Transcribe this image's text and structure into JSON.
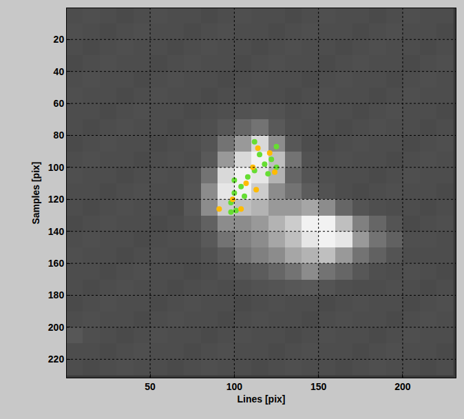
{
  "chart_data": {
    "type": "scatter",
    "x_label": "Lines [pix]",
    "y_label": "Samples [pix]",
    "xlim": [
      0.5,
      231.5
    ],
    "ylim": [
      231.5,
      0.5
    ],
    "xticks": [
      50,
      100,
      150,
      200
    ],
    "yticks": [
      20,
      40,
      60,
      80,
      100,
      120,
      140,
      160,
      180,
      200,
      220
    ],
    "grid": true,
    "marker": "circle",
    "series": [
      {
        "color": "#66dd33",
        "x": [
          112,
          125,
          115,
          122,
          118,
          125,
          120,
          100,
          108,
          104,
          100,
          106,
          98,
          98,
          101,
          112
        ],
        "values": [
          84,
          87,
          92,
          95,
          98,
          100,
          104,
          108,
          106,
          112,
          116,
          118,
          122,
          128,
          127,
          102
        ]
      },
      {
        "color": "#ffbb00",
        "x": [
          114,
          121,
          111,
          107,
          113,
          91,
          104,
          99,
          124
        ],
        "values": [
          88,
          91,
          100,
          110,
          114,
          126,
          126,
          120,
          103
        ]
      }
    ],
    "heatmap": {
      "x": [
        5,
        15,
        25,
        35,
        45,
        55,
        65,
        75,
        85,
        95,
        105,
        115,
        125,
        135,
        145,
        155,
        165,
        175,
        185,
        195,
        205,
        215,
        225
      ],
      "y": [
        5,
        15,
        25,
        35,
        45,
        55,
        65,
        75,
        85,
        95,
        105,
        115,
        125,
        135,
        145,
        155,
        165,
        175,
        185,
        195,
        205,
        215,
        225
      ],
      "zlim": [
        0,
        100
      ],
      "cells": [
        [
          30,
          31,
          30,
          29,
          30,
          31,
          30,
          30,
          29,
          30,
          31,
          30,
          30,
          29,
          30,
          31,
          30,
          30,
          29,
          30,
          31,
          30,
          30
        ],
        [
          31,
          30,
          29,
          30,
          31,
          30,
          30,
          29,
          30,
          31,
          30,
          30,
          29,
          30,
          31,
          30,
          30,
          29,
          30,
          31,
          30,
          30,
          29
        ],
        [
          30,
          29,
          30,
          31,
          30,
          30,
          29,
          30,
          31,
          30,
          30,
          29,
          30,
          31,
          30,
          30,
          29,
          30,
          31,
          30,
          30,
          29,
          30
        ],
        [
          29,
          30,
          31,
          30,
          30,
          29,
          30,
          31,
          30,
          30,
          29,
          30,
          31,
          30,
          30,
          29,
          30,
          31,
          30,
          30,
          29,
          30,
          31
        ],
        [
          30,
          31,
          30,
          30,
          29,
          30,
          31,
          30,
          30,
          29,
          30,
          31,
          30,
          30,
          29,
          30,
          31,
          30,
          30,
          29,
          30,
          31,
          30
        ],
        [
          31,
          30,
          30,
          29,
          30,
          31,
          30,
          30,
          29,
          30,
          31,
          30,
          30,
          29,
          30,
          31,
          30,
          30,
          29,
          30,
          31,
          30,
          30
        ],
        [
          30,
          30,
          29,
          30,
          31,
          30,
          30,
          29,
          30,
          31,
          32,
          33,
          32,
          30,
          31,
          30,
          30,
          29,
          30,
          31,
          30,
          30,
          29
        ],
        [
          30,
          29,
          30,
          31,
          30,
          30,
          29,
          30,
          31,
          34,
          40,
          45,
          35,
          31,
          30,
          30,
          29,
          30,
          31,
          30,
          30,
          29,
          30
        ],
        [
          29,
          30,
          31,
          30,
          30,
          29,
          30,
          31,
          33,
          45,
          60,
          85,
          55,
          34,
          30,
          29,
          30,
          31,
          30,
          30,
          29,
          30,
          31
        ],
        [
          30,
          31,
          30,
          30,
          29,
          30,
          31,
          30,
          35,
          60,
          85,
          95,
          75,
          45,
          32,
          30,
          31,
          30,
          30,
          29,
          30,
          31,
          30
        ],
        [
          31,
          30,
          30,
          29,
          30,
          31,
          30,
          32,
          45,
          85,
          95,
          90,
          70,
          40,
          33,
          31,
          30,
          30,
          29,
          30,
          31,
          30,
          30
        ],
        [
          30,
          30,
          29,
          30,
          31,
          30,
          30,
          33,
          55,
          90,
          95,
          80,
          55,
          45,
          36,
          32,
          30,
          29,
          30,
          31,
          30,
          30,
          29
        ],
        [
          30,
          29,
          30,
          31,
          30,
          30,
          29,
          34,
          55,
          80,
          75,
          70,
          60,
          60,
          65,
          55,
          40,
          33,
          31,
          30,
          30,
          29,
          30
        ],
        [
          29,
          30,
          31,
          30,
          30,
          29,
          30,
          32,
          38,
          55,
          55,
          60,
          70,
          80,
          95,
          95,
          75,
          50,
          40,
          33,
          29,
          30,
          31
        ],
        [
          30,
          31,
          30,
          30,
          29,
          30,
          31,
          31,
          35,
          45,
          50,
          55,
          65,
          75,
          90,
          95,
          90,
          60,
          45,
          38,
          31,
          31,
          30
        ],
        [
          31,
          30,
          30,
          29,
          30,
          31,
          30,
          30,
          32,
          36,
          45,
          50,
          55,
          65,
          70,
          75,
          60,
          45,
          38,
          33,
          30,
          30,
          30
        ],
        [
          30,
          30,
          29,
          30,
          31,
          30,
          30,
          29,
          30,
          32,
          34,
          36,
          40,
          45,
          55,
          45,
          40,
          34,
          31,
          30,
          31,
          30,
          29
        ],
        [
          30,
          29,
          30,
          31,
          30,
          30,
          29,
          30,
          31,
          30,
          31,
          32,
          33,
          34,
          35,
          33,
          31,
          30,
          30,
          31,
          30,
          29,
          30
        ],
        [
          29,
          30,
          31,
          30,
          30,
          29,
          30,
          31,
          30,
          30,
          29,
          30,
          31,
          30,
          30,
          29,
          30,
          31,
          30,
          30,
          29,
          30,
          31
        ],
        [
          30,
          31,
          30,
          30,
          29,
          30,
          31,
          30,
          30,
          29,
          30,
          31,
          30,
          30,
          29,
          30,
          31,
          30,
          30,
          29,
          30,
          31,
          30
        ],
        [
          34,
          31,
          30,
          29,
          30,
          31,
          30,
          30,
          29,
          30,
          31,
          30,
          30,
          29,
          30,
          31,
          30,
          30,
          29,
          30,
          31,
          30,
          30
        ],
        [
          30,
          30,
          29,
          30,
          31,
          30,
          30,
          29,
          30,
          31,
          30,
          30,
          29,
          30,
          31,
          30,
          30,
          29,
          30,
          31,
          30,
          30,
          29
        ],
        [
          30,
          29,
          30,
          31,
          30,
          30,
          29,
          30,
          31,
          30,
          30,
          29,
          30,
          31,
          30,
          30,
          29,
          30,
          31,
          30,
          30,
          29,
          30
        ]
      ]
    }
  }
}
